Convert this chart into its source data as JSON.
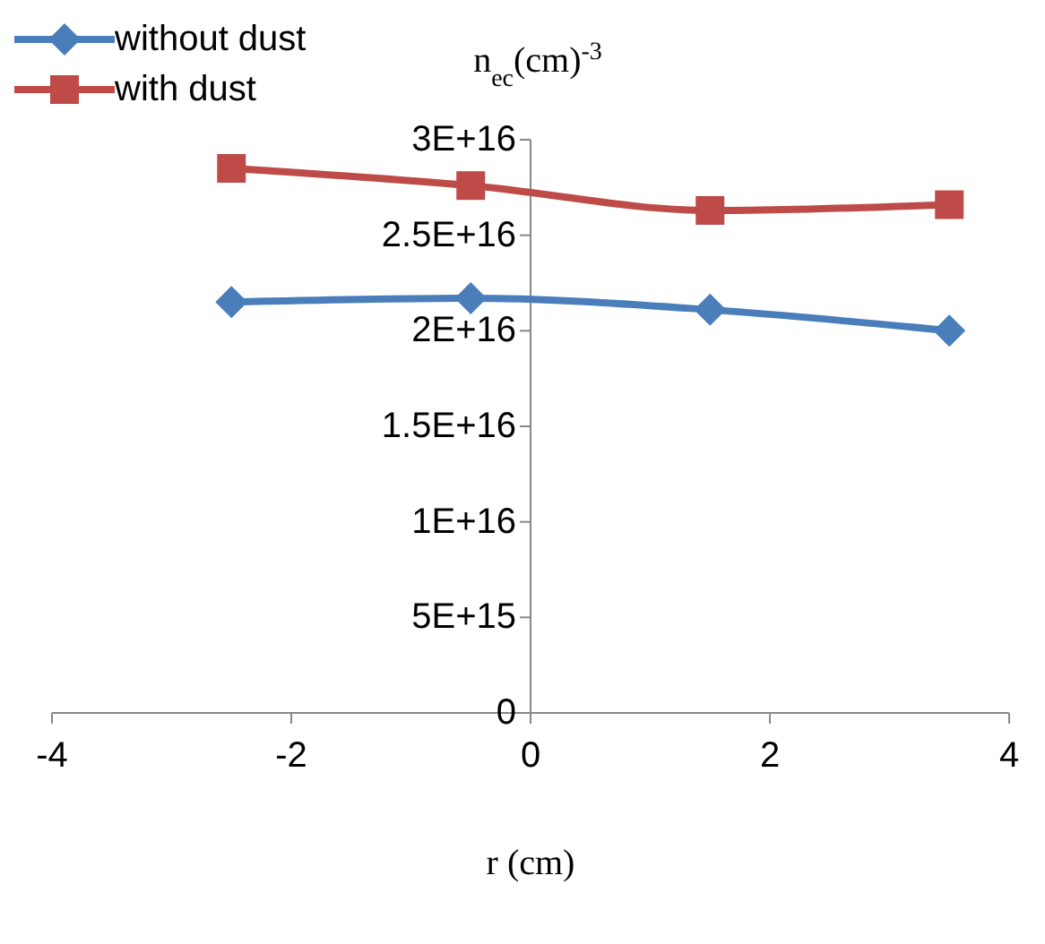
{
  "chart_data": {
    "type": "line",
    "xlabel": "r (cm)",
    "ylabel": "n$_{ec}$(cm)$^{-3}$",
    "x": [
      -2.5,
      -0.5,
      1.5,
      3.5
    ],
    "series": [
      {
        "name": "without dust",
        "color": "#4a7ebb",
        "marker": "diamond",
        "values": [
          2.15e+16,
          2.17e+16,
          2.11e+16,
          2e+16
        ]
      },
      {
        "name": "with dust",
        "color": "#be4b48",
        "marker": "square",
        "values": [
          2.85e+16,
          2.76e+16,
          2.63e+16,
          2.66e+16
        ]
      }
    ],
    "xlim": [
      -4,
      4
    ],
    "xticks": [
      -4,
      -2,
      0,
      2,
      4
    ],
    "ylim": [
      0,
      3e+16
    ],
    "yticks": [
      {
        "value": 0,
        "label": "0"
      },
      {
        "value": 5000000000000000.0,
        "label": "5E+15"
      },
      {
        "value": 1e+16,
        "label": "1E+16"
      },
      {
        "value": 1.5e+16,
        "label": "1.5E+16"
      },
      {
        "value": 2e+16,
        "label": "2E+16"
      },
      {
        "value": 2.5e+16,
        "label": "2.5E+16"
      },
      {
        "value": 3e+16,
        "label": "3E+16"
      }
    ],
    "grid": false,
    "legend": "top left"
  }
}
